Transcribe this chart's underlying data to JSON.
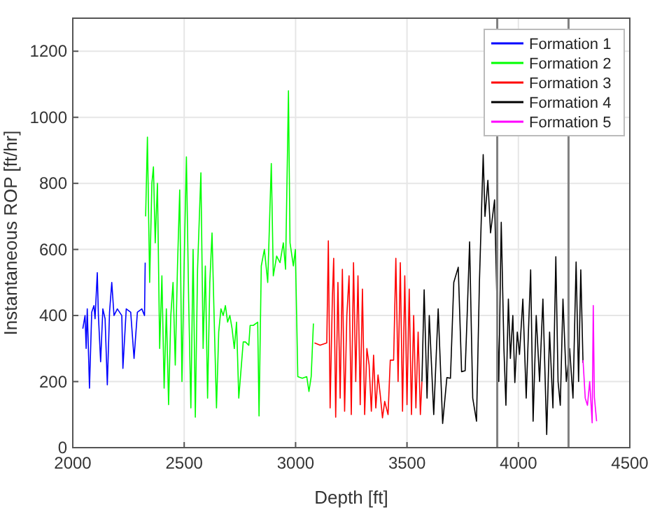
{
  "chart_data": {
    "type": "line",
    "xlabel": "Depth [ft]",
    "ylabel": "Instantaneous ROP [ft/hr]",
    "xlim": [
      2000,
      4500
    ],
    "ylim": [
      0,
      1300
    ],
    "xticks": [
      2000,
      2500,
      3000,
      3500,
      4000,
      4500
    ],
    "yticks": [
      0,
      200,
      400,
      600,
      800,
      1000,
      1200
    ],
    "grid": true,
    "legend": "top right",
    "marker": "none",
    "line_style": "solid",
    "ref_lines": [
      {
        "axis": "x",
        "value": 3905,
        "color": "#808080"
      },
      {
        "axis": "x",
        "value": 4225,
        "color": "#808080"
      }
    ],
    "series": [
      {
        "name": "Formation 1",
        "color": "#0000ff",
        "x": [
          2045,
          2055,
          2060,
          2065,
          2075,
          2085,
          2095,
          2100,
          2110,
          2115,
          2125,
          2135,
          2145,
          2155,
          2165,
          2175,
          2185,
          2200,
          2220,
          2225,
          2240,
          2260,
          2275,
          2290,
          2310,
          2322,
          2325
        ],
        "values": [
          360,
          400,
          300,
          420,
          180,
          410,
          430,
          390,
          530,
          400,
          260,
          420,
          390,
          190,
          410,
          500,
          400,
          420,
          400,
          240,
          420,
          410,
          270,
          410,
          420,
          400,
          560
        ]
      },
      {
        "name": "Formation 2",
        "color": "#00ff00",
        "x": [
          2327,
          2335,
          2345,
          2355,
          2362,
          2370,
          2380,
          2390,
          2400,
          2410,
          2420,
          2430,
          2440,
          2450,
          2460,
          2470,
          2480,
          2490,
          2500,
          2510,
          2520,
          2530,
          2540,
          2550,
          2560,
          2575,
          2585,
          2595,
          2605,
          2615,
          2625,
          2635,
          2645,
          2655,
          2665,
          2675,
          2685,
          2695,
          2705,
          2715,
          2725,
          2735,
          2745,
          2765,
          2775,
          2790,
          2796,
          2810,
          2830,
          2836,
          2846,
          2860,
          2875,
          2891,
          2900,
          2915,
          2930,
          2945,
          2955,
          2968,
          2975,
          2990,
          2999,
          3010,
          3030,
          3050,
          3060,
          3070,
          3080
        ],
        "values": [
          700,
          940,
          500,
          800,
          850,
          620,
          800,
          300,
          520,
          180,
          420,
          130,
          400,
          500,
          250,
          550,
          780,
          200,
          560,
          880,
          450,
          120,
          600,
          92,
          540,
          832,
          300,
          550,
          150,
          500,
          650,
          380,
          120,
          350,
          420,
          400,
          430,
          380,
          400,
          360,
          300,
          380,
          150,
          320,
          320,
          310,
          370,
          370,
          380,
          96,
          550,
          600,
          500,
          860,
          520,
          580,
          560,
          620,
          540,
          1080,
          620,
          550,
          600,
          215,
          210,
          215,
          170,
          215,
          376
        ]
      },
      {
        "name": "Formation 3",
        "color": "#ff0000",
        "x": [
          3085,
          3110,
          3140,
          3147,
          3155,
          3165,
          3171,
          3180,
          3190,
          3200,
          3210,
          3220,
          3230,
          3240,
          3250,
          3260,
          3270,
          3280,
          3290,
          3300,
          3310,
          3320,
          3330,
          3340,
          3350,
          3360,
          3370,
          3380,
          3390,
          3400,
          3415,
          3425,
          3440,
          3450,
          3460,
          3470,
          3480,
          3490,
          3500,
          3510,
          3520,
          3530,
          3540,
          3550,
          3560,
          3567
        ],
        "values": [
          317,
          310,
          317,
          626,
          120,
          450,
          573,
          92,
          500,
          150,
          540,
          110,
          400,
          520,
          100,
          560,
          200,
          520,
          130,
          480,
          100,
          300,
          250,
          110,
          280,
          120,
          220,
          160,
          90,
          140,
          100,
          265,
          265,
          573,
          200,
          560,
          110,
          520,
          130,
          480,
          100,
          400,
          120,
          350,
          100,
          200
        ]
      },
      {
        "name": "Formation 4",
        "color": "#000000",
        "x": [
          3567,
          3577,
          3590,
          3600,
          3620,
          3640,
          3660,
          3679,
          3695,
          3710,
          3730,
          3745,
          3761,
          3770,
          3781,
          3795,
          3812,
          3825,
          3842,
          3850,
          3863,
          3875,
          3893,
          3912,
          3923,
          3935,
          3944,
          3955,
          3964,
          3975,
          3984,
          3995,
          4005,
          4020,
          4035,
          4045,
          4055,
          4066,
          4080,
          4095,
          4110,
          4127,
          4140,
          4155,
          4168,
          4178,
          4188,
          4200,
          4215,
          4230,
          4245,
          4259,
          4270,
          4280,
          4290
        ],
        "values": [
          200,
          478,
          150,
          400,
          100,
          420,
          73,
          212,
          210,
          500,
          546,
          230,
          233,
          400,
          623,
          150,
          80,
          500,
          887,
          700,
          809,
          650,
          750,
          200,
          682,
          300,
          128,
          450,
          270,
          400,
          197,
          350,
          282,
          450,
          150,
          350,
          538,
          80,
          400,
          200,
          450,
          40,
          350,
          120,
          578,
          200,
          128,
          450,
          200,
          300,
          150,
          562,
          200,
          538,
          257
        ]
      },
      {
        "name": "Formation 5",
        "color": "#ff00ff",
        "x": [
          4290,
          4300,
          4310,
          4320,
          4331,
          4336,
          4341,
          4351
        ],
        "values": [
          265,
          150,
          128,
          200,
          75,
          430,
          153,
          80
        ]
      }
    ]
  }
}
